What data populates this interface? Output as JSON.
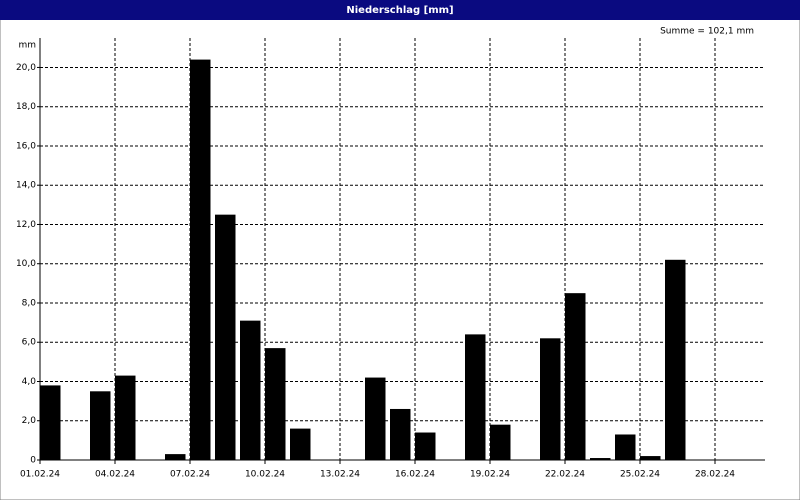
{
  "chart_data": {
    "type": "bar",
    "title": "Niederschlag [mm]",
    "y_label": "mm",
    "annotation": "Summe = 102,1 mm",
    "categories": [
      "01.02.24",
      null,
      null,
      "04.02.24",
      null,
      null,
      "07.02.24",
      null,
      null,
      "10.02.24",
      null,
      null,
      "13.02.24",
      null,
      null,
      "16.02.24",
      null,
      null,
      "19.02.24",
      null,
      null,
      "22.02.24",
      null,
      null,
      "25.02.24",
      null,
      null,
      "28.02.24",
      null
    ],
    "values": [
      3.8,
      0,
      3.5,
      4.3,
      0,
      0.3,
      20.4,
      12.5,
      7.1,
      5.7,
      1.6,
      0,
      0,
      4.2,
      2.6,
      1.4,
      0,
      6.4,
      1.8,
      0,
      6.2,
      8.5,
      0.1,
      1.3,
      0.2,
      10.2,
      0,
      0,
      0
    ],
    "color": "#000000",
    "ylim": [
      0,
      21.5
    ],
    "yticks": [
      0,
      {
        "value": 2,
        "label": "2,0"
      },
      {
        "value": 4,
        "label": "4,0"
      },
      {
        "value": 6,
        "label": "6,0"
      },
      {
        "value": 8,
        "label": "8,0"
      },
      {
        "value": 10,
        "label": "10,0"
      },
      {
        "value": 12,
        "label": "12,0"
      },
      {
        "value": 14,
        "label": "14,0"
      },
      {
        "value": 16,
        "label": "16,0"
      },
      {
        "value": 18,
        "label": "18,0"
      },
      {
        "value": 20,
        "label": "20,0"
      }
    ],
    "grid": true
  }
}
